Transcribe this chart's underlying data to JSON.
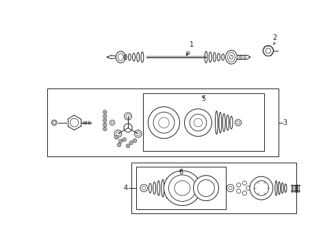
{
  "bg_color": "#ffffff",
  "fig_width": 4.89,
  "fig_height": 3.6,
  "dpi": 100,
  "lw": 0.7,
  "dark": "#1a1a1a"
}
